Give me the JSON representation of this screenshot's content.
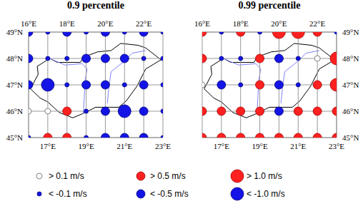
{
  "chart_data": [
    {
      "type": "scatter",
      "title": "0.9 percentile",
      "xlim": [
        16,
        23
      ],
      "ylim": [
        45,
        49
      ],
      "x2ticks": [
        {
          "value": 16,
          "label": "16°E"
        },
        {
          "value": 18,
          "label": "18°E"
        },
        {
          "value": 20,
          "label": "20°E"
        },
        {
          "value": 22,
          "label": "22°E"
        }
      ],
      "xticks": [
        {
          "value": 17,
          "label": "17°E"
        },
        {
          "value": 19,
          "label": "19°E"
        },
        {
          "value": 21,
          "label": "21°E"
        },
        {
          "value": 23,
          "label": "23°E"
        }
      ],
      "yticks": [
        {
          "value": 45,
          "label": "45°N"
        },
        {
          "value": 46,
          "label": "46°N"
        },
        {
          "value": 47,
          "label": "47°N"
        },
        {
          "value": 48,
          "label": "48°N"
        },
        {
          "value": 49,
          "label": "49°N"
        }
      ],
      "grid": true,
      "series": [
        {
          "name": "> 0.1 m/s",
          "color": "#ffffff",
          "marker": "small",
          "x": [
            16,
            17
          ],
          "y": [
            46,
            46
          ]
        },
        {
          "name": "> 0.5 m/s",
          "color": "#ff2020",
          "marker": "medium",
          "x": [
            18,
            17,
            18
          ],
          "y": [
            46,
            45,
            45
          ]
        },
        {
          "name": "> 1.0 m/s",
          "color": "#ff2020",
          "marker": "large",
          "x": [],
          "y": []
        },
        {
          "name": "< -0.1 m/s",
          "color": "#1414e6",
          "marker": "small",
          "x": [
            17,
            19,
            21,
            23,
            17,
            18,
            22,
            23,
            18,
            21,
            23,
            19,
            23,
            16,
            19,
            23
          ],
          "y": [
            49,
            49,
            49,
            49,
            48,
            48,
            48,
            48,
            47,
            47,
            47,
            46,
            46,
            45,
            45,
            45
          ]
        },
        {
          "name": "< -0.5 m/s",
          "color": "#1414e6",
          "marker": "medium",
          "x": [
            16,
            18,
            20,
            22,
            16,
            19,
            20,
            21,
            16,
            19,
            20,
            22,
            20,
            22,
            20,
            21,
            22
          ],
          "y": [
            49,
            49,
            49,
            49,
            48,
            48,
            48,
            48,
            47,
            47,
            47,
            47,
            46,
            46,
            45,
            45,
            45
          ]
        },
        {
          "name": "< -1.0 m/s",
          "color": "#1414e6",
          "marker": "large",
          "x": [
            17,
            21
          ],
          "y": [
            47,
            46
          ]
        }
      ]
    },
    {
      "type": "scatter",
      "title": "0.99 percentile",
      "xlim": [
        16,
        23
      ],
      "ylim": [
        45,
        49
      ],
      "x2ticks": [
        {
          "value": 16,
          "label": "16°E"
        },
        {
          "value": 18,
          "label": "18°E"
        },
        {
          "value": 20,
          "label": "20°E"
        },
        {
          "value": 22,
          "label": "22°E"
        }
      ],
      "xticks": [
        {
          "value": 17,
          "label": "17°E"
        },
        {
          "value": 19,
          "label": "19°E"
        },
        {
          "value": 21,
          "label": "21°E"
        },
        {
          "value": 23,
          "label": "23°E"
        }
      ],
      "yticks": [
        {
          "value": 45,
          "label": "45°N"
        },
        {
          "value": 46,
          "label": "46°N"
        },
        {
          "value": 47,
          "label": "47°N"
        },
        {
          "value": 48,
          "label": "48°N"
        },
        {
          "value": 49,
          "label": "49°N"
        }
      ],
      "grid": true,
      "series": [
        {
          "name": "> 0.1 m/s",
          "color": "#ffffff",
          "marker": "small",
          "x": [
            16,
            22
          ],
          "y": [
            47,
            48
          ]
        },
        {
          "name": "> 0.5 m/s",
          "color": "#ff2020",
          "marker": "medium",
          "x": [
            16,
            18,
            22,
            16,
            19,
            19,
            22,
            16,
            17,
            18,
            19,
            21,
            22,
            23,
            16,
            17,
            18,
            19,
            20,
            21,
            22,
            23
          ],
          "y": [
            49,
            49,
            49,
            48,
            48,
            47,
            47,
            46,
            46,
            46,
            46,
            46,
            46,
            46,
            45,
            45,
            45,
            45,
            45,
            45,
            45,
            45
          ]
        },
        {
          "name": "> 1.0 m/s",
          "color": "#ff2020",
          "marker": "large",
          "x": [
            20,
            21,
            23,
            23
          ],
          "y": [
            49,
            49,
            48,
            47
          ]
        },
        {
          "name": "< -0.1 m/s",
          "color": "#1414e6",
          "marker": "small",
          "x": [
            17,
            19,
            23,
            17,
            18,
            21,
            18,
            21
          ],
          "y": [
            49,
            49,
            49,
            48,
            48,
            48,
            47,
            47
          ]
        },
        {
          "name": "< -0.5 m/s",
          "color": "#1414e6",
          "marker": "medium",
          "x": [
            20,
            17,
            20,
            20
          ],
          "y": [
            48,
            47,
            47,
            46
          ]
        },
        {
          "name": "< -1.0 m/s",
          "color": "#1414e6",
          "marker": "large",
          "x": [],
          "y": []
        }
      ]
    }
  ]
}
